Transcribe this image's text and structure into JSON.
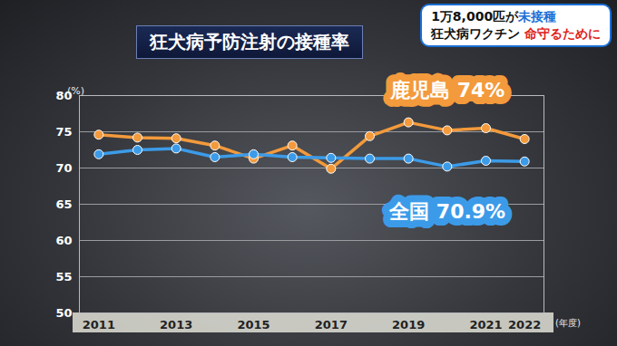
{
  "chart_data": {
    "type": "line",
    "title": "狂犬病予防注射の接種率",
    "badge": {
      "lines": [
        [
          {
            "text": "1万8,000匹が"
          },
          {
            "text": "未接種",
            "color": "#1a6fd6"
          }
        ],
        [
          {
            "text": "狂犬病ワクチン "
          },
          {
            "text": "命守るために",
            "color": "#e0241b"
          }
        ]
      ]
    },
    "y_label": "(%)",
    "x_label": "(年度)",
    "x": [
      2011,
      2012,
      2013,
      2014,
      2015,
      2016,
      2017,
      2018,
      2019,
      2020,
      2021,
      2022
    ],
    "series": [
      {
        "name": "鹿児島",
        "end_label": "74%",
        "color": "#f39a3c",
        "marker": "circle",
        "values": [
          74.6,
          74.2,
          74.1,
          73.1,
          71.3,
          73.1,
          69.9,
          74.4,
          76.3,
          75.2,
          75.5,
          74
        ]
      },
      {
        "name": "全国",
        "end_label": "70.9%",
        "color": "#3c9be8",
        "marker": "circle",
        "values": [
          71.9,
          72.5,
          72.7,
          71.5,
          71.9,
          71.5,
          71.4,
          71.3,
          71.3,
          70.2,
          71.0,
          70.9
        ]
      }
    ],
    "xlim": [
      2010.5,
      2022.5
    ],
    "xticks": [
      2011,
      2013,
      2015,
      2017,
      2019,
      2021,
      2022
    ],
    "ylim": [
      50,
      80
    ],
    "yticks": [
      50,
      55,
      60,
      65,
      70,
      75,
      80
    ],
    "grid": true
  }
}
